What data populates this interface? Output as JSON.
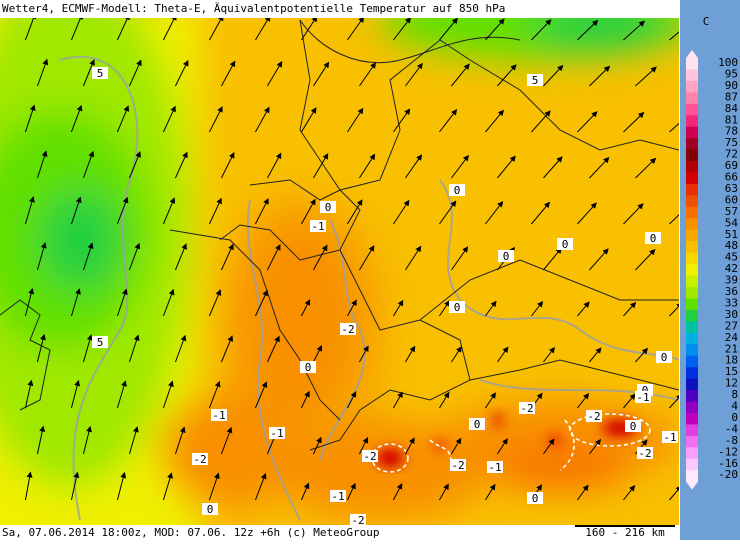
{
  "header": {
    "title": "Wetter4, ECMWF-Modell: Theta-E, Äquivalentpotentielle Temperatur auf 850 hPa"
  },
  "footer": {
    "info": "Sa, 07.06.2014 18:00z, MOD: 07.06. 12z +6h (c) MeteoGroup",
    "scale": "160 - 216 km"
  },
  "legend": {
    "unit": "C",
    "items": [
      {
        "value": 100,
        "color": "#ffe4f0"
      },
      {
        "value": 95,
        "color": "#ffc4dc"
      },
      {
        "value": 90,
        "color": "#ffa4c4"
      },
      {
        "value": 87,
        "color": "#ff84ac"
      },
      {
        "value": 84,
        "color": "#ff5494"
      },
      {
        "value": 81,
        "color": "#f02878"
      },
      {
        "value": 78,
        "color": "#d00050"
      },
      {
        "value": 75,
        "color": "#a00020"
      },
      {
        "value": 72,
        "color": "#800000"
      },
      {
        "value": 69,
        "color": "#b00000"
      },
      {
        "value": 66,
        "color": "#d40000"
      },
      {
        "value": 63,
        "color": "#e83000"
      },
      {
        "value": 60,
        "color": "#f05000"
      },
      {
        "value": 57,
        "color": "#f87000"
      },
      {
        "value": 54,
        "color": "#f89000"
      },
      {
        "value": 51,
        "color": "#f8a800"
      },
      {
        "value": 48,
        "color": "#f8c000"
      },
      {
        "value": 45,
        "color": "#f8d800"
      },
      {
        "value": 42,
        "color": "#f0f000"
      },
      {
        "value": 39,
        "color": "#c8f000"
      },
      {
        "value": 36,
        "color": "#a0e800"
      },
      {
        "value": 33,
        "color": "#60e000"
      },
      {
        "value": 30,
        "color": "#20d040"
      },
      {
        "value": 27,
        "color": "#00c0a0"
      },
      {
        "value": 24,
        "color": "#00b0e0"
      },
      {
        "value": 21,
        "color": "#0090f0"
      },
      {
        "value": 18,
        "color": "#0060f0"
      },
      {
        "value": 15,
        "color": "#0030e0"
      },
      {
        "value": 12,
        "color": "#1010c0"
      },
      {
        "value": 8,
        "color": "#5000c0"
      },
      {
        "value": 4,
        "color": "#9000c0"
      },
      {
        "value": 0,
        "color": "#c000c0"
      },
      {
        "value": -4,
        "color": "#e040e0"
      },
      {
        "value": -8,
        "color": "#f070f0"
      },
      {
        "value": -12,
        "color": "#f8a0f8"
      },
      {
        "value": -16,
        "color": "#fcc8fc"
      },
      {
        "value": -20,
        "color": "#ffe8ff"
      }
    ]
  },
  "contour_labels": [
    "5",
    "5",
    "0",
    "0",
    "-1",
    "0",
    "0",
    "0",
    "0",
    "5",
    "-2",
    "0",
    "0",
    "0",
    "-1",
    "-1",
    "-2",
    "-2",
    "0",
    "-1",
    "0",
    "-1",
    "-2",
    "-2",
    "-2",
    "-1",
    "-2",
    "-1",
    "0",
    "-2",
    "0"
  ]
}
